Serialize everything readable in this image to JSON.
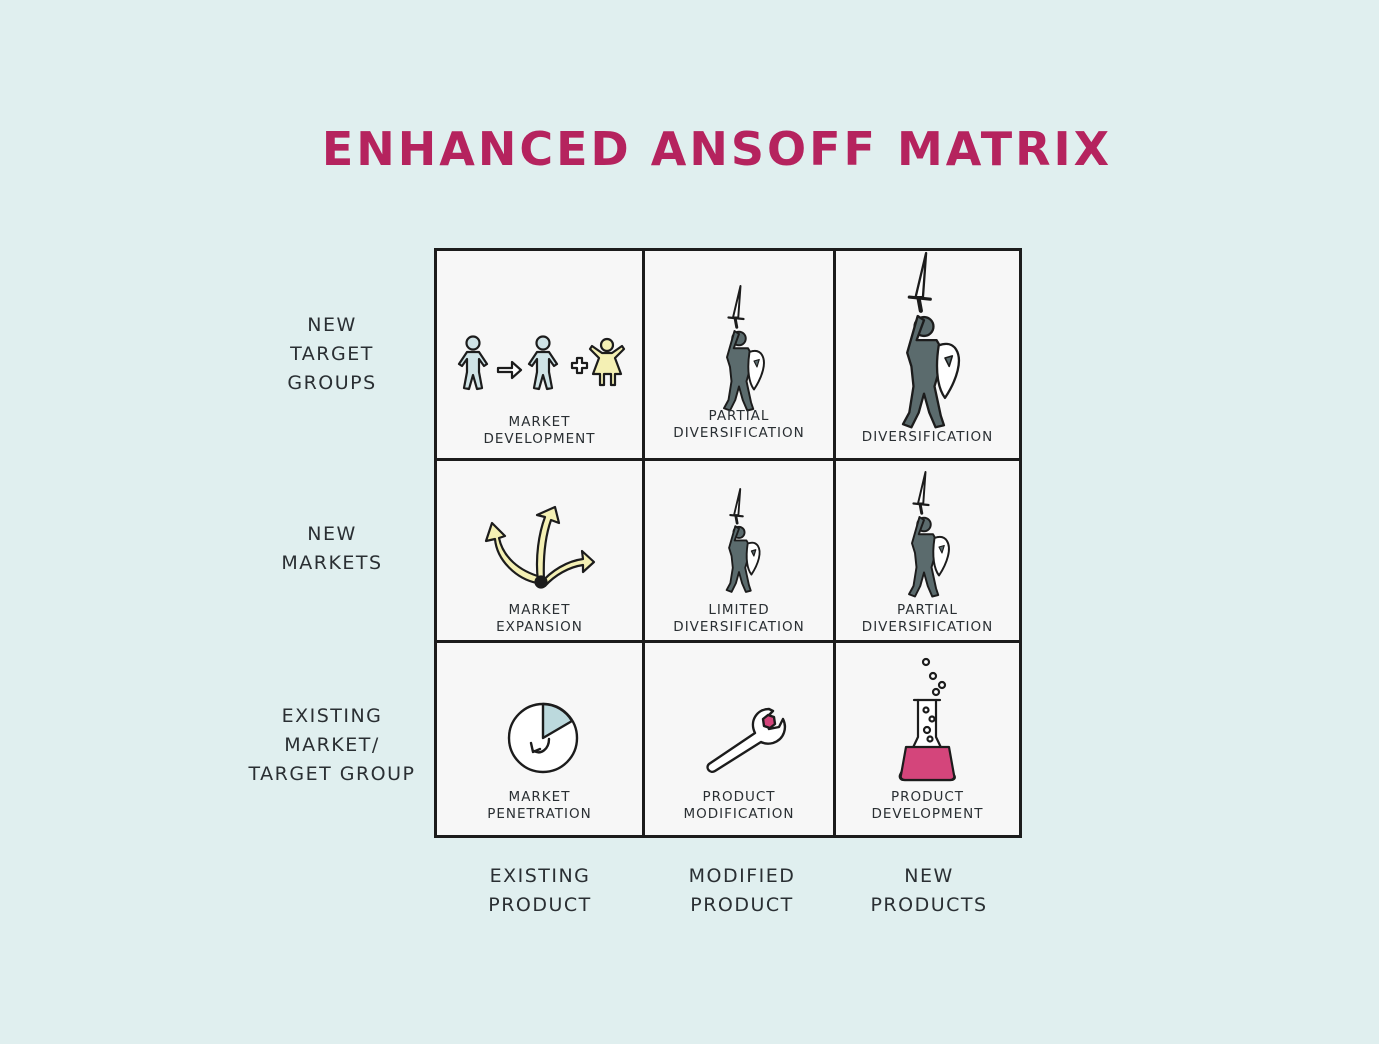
{
  "title": "ENHANCED ANSOFF MATRIX",
  "rows": [
    {
      "label": [
        "NEW",
        "TARGET",
        "GROUPS"
      ]
    },
    {
      "label": [
        "NEW",
        "MARKETS"
      ]
    },
    {
      "label": [
        "EXISTING",
        "MARKET/",
        "TARGET GROUP"
      ]
    }
  ],
  "columns": [
    {
      "label": [
        "EXISTING",
        "PRODUCT"
      ]
    },
    {
      "label": [
        "MODIFIED",
        "PRODUCT"
      ]
    },
    {
      "label": [
        "NEW",
        "PRODUCTS"
      ]
    }
  ],
  "cells": [
    {
      "caption": [
        "MARKET",
        "DEVELOPMENT"
      ],
      "icon": "people-growth-icon"
    },
    {
      "caption": [
        "PARTIAL",
        "DIVERSIFICATION"
      ],
      "icon": "knight-icon"
    },
    {
      "caption": [
        "DIVERSIFICATION"
      ],
      "icon": "knight-icon"
    },
    {
      "caption": [
        "MARKET",
        "EXPANSION"
      ],
      "icon": "branching-arrows-icon"
    },
    {
      "caption": [
        "LIMITED",
        "DIVERSIFICATION"
      ],
      "icon": "knight-icon"
    },
    {
      "caption": [
        "PARTIAL",
        "DIVERSIFICATION"
      ],
      "icon": "knight-icon"
    },
    {
      "caption": [
        "MARKET",
        "PENETRATION"
      ],
      "icon": "pie-chart-icon"
    },
    {
      "caption": [
        "PRODUCT",
        "MODIFICATION"
      ],
      "icon": "wrench-icon"
    },
    {
      "caption": [
        "PRODUCT",
        "DEVELOPMENT"
      ],
      "icon": "flask-icon"
    }
  ],
  "colors": {
    "background": "#e0efef",
    "title": "#b5235e",
    "figure": "#5b6b6d",
    "person": "#cfe3e6",
    "yellow": "#f4f0b4",
    "pie": "#bcd9dd",
    "magenta": "#d4457b"
  }
}
